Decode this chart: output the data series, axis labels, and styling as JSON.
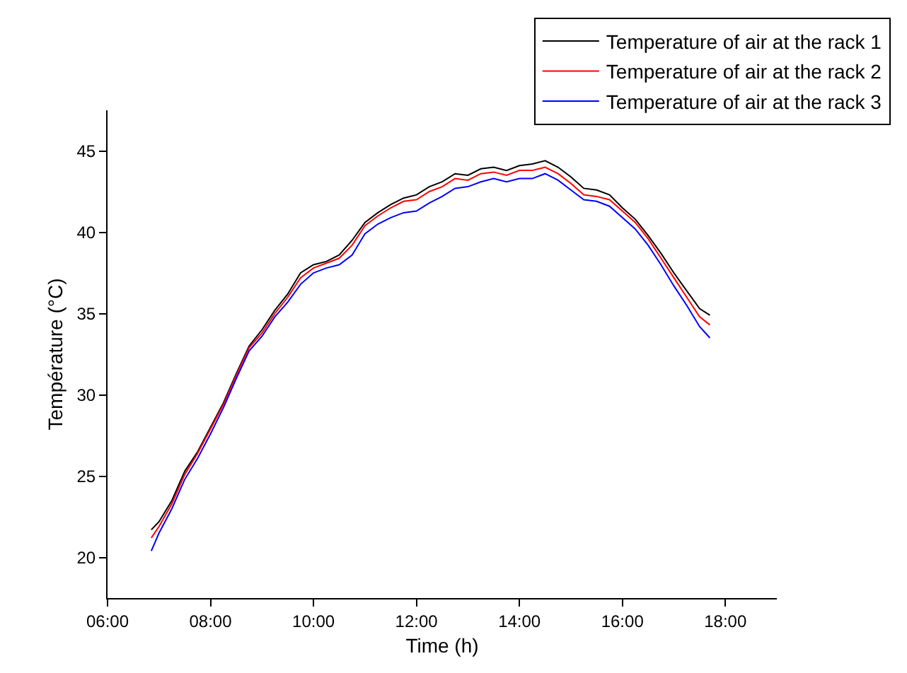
{
  "chart_data": {
    "type": "line",
    "xlabel": "Time (h)",
    "ylabel": "Température (°C)",
    "x": [
      6.85,
      7.0,
      7.25,
      7.5,
      7.75,
      8.0,
      8.25,
      8.5,
      8.75,
      9.0,
      9.25,
      9.5,
      9.75,
      10.0,
      10.25,
      10.5,
      10.75,
      11.0,
      11.25,
      11.5,
      11.75,
      12.0,
      12.25,
      12.5,
      12.75,
      13.0,
      13.25,
      13.5,
      13.75,
      14.0,
      14.25,
      14.5,
      14.75,
      15.0,
      15.25,
      15.5,
      15.75,
      16.0,
      16.25,
      16.5,
      16.75,
      17.0,
      17.25,
      17.5,
      17.7
    ],
    "series": [
      {
        "name": "Temperature of air at the rack 1",
        "color": "#000000",
        "values": [
          21.7,
          22.2,
          23.5,
          25.3,
          26.5,
          28.0,
          29.5,
          31.3,
          33.0,
          34.0,
          35.2,
          36.2,
          37.5,
          38.0,
          38.2,
          38.6,
          39.5,
          40.6,
          41.2,
          41.7,
          42.1,
          42.3,
          42.8,
          43.1,
          43.6,
          43.5,
          43.9,
          44.0,
          43.8,
          44.1,
          44.2,
          44.4,
          44.0,
          43.4,
          42.7,
          42.6,
          42.3,
          41.5,
          40.8,
          39.8,
          38.7,
          37.5,
          36.4,
          35.3,
          34.9
        ]
      },
      {
        "name": "Temperature of air at the rack 2",
        "color": "#ff0000",
        "values": [
          21.2,
          21.9,
          23.3,
          25.1,
          26.4,
          27.9,
          29.4,
          31.2,
          32.9,
          33.8,
          35.0,
          36.0,
          37.2,
          37.8,
          38.1,
          38.4,
          39.2,
          40.4,
          41.0,
          41.5,
          41.9,
          42.0,
          42.5,
          42.8,
          43.3,
          43.2,
          43.6,
          43.7,
          43.5,
          43.8,
          43.8,
          44.0,
          43.6,
          43.0,
          42.3,
          42.2,
          42.0,
          41.3,
          40.6,
          39.6,
          38.4,
          37.2,
          36.0,
          34.8,
          34.3
        ]
      },
      {
        "name": "Temperature of air at the rack 3",
        "color": "#0000ff",
        "values": [
          20.4,
          21.5,
          23.0,
          24.8,
          26.1,
          27.6,
          29.2,
          31.0,
          32.7,
          33.6,
          34.8,
          35.7,
          36.8,
          37.5,
          37.8,
          38.0,
          38.6,
          39.9,
          40.5,
          40.9,
          41.2,
          41.3,
          41.8,
          42.2,
          42.7,
          42.8,
          43.1,
          43.3,
          43.1,
          43.3,
          43.3,
          43.6,
          43.2,
          42.6,
          42.0,
          41.9,
          41.6,
          40.9,
          40.2,
          39.2,
          38.0,
          36.7,
          35.5,
          34.2,
          33.5
        ]
      }
    ],
    "xlim": [
      6,
      19
    ],
    "xticks": [
      {
        "value": 6,
        "label": "06:00"
      },
      {
        "value": 8,
        "label": "08:00"
      },
      {
        "value": 10,
        "label": "10:00"
      },
      {
        "value": 12,
        "label": "12:00"
      },
      {
        "value": 14,
        "label": "14:00"
      },
      {
        "value": 16,
        "label": "16:00"
      },
      {
        "value": 18,
        "label": "18:00"
      }
    ],
    "ylim": [
      17.5,
      47.5
    ],
    "yticks": [
      20,
      25,
      30,
      35,
      40,
      45
    ],
    "legend": "top right",
    "marker": "none",
    "line_style": "solid"
  }
}
